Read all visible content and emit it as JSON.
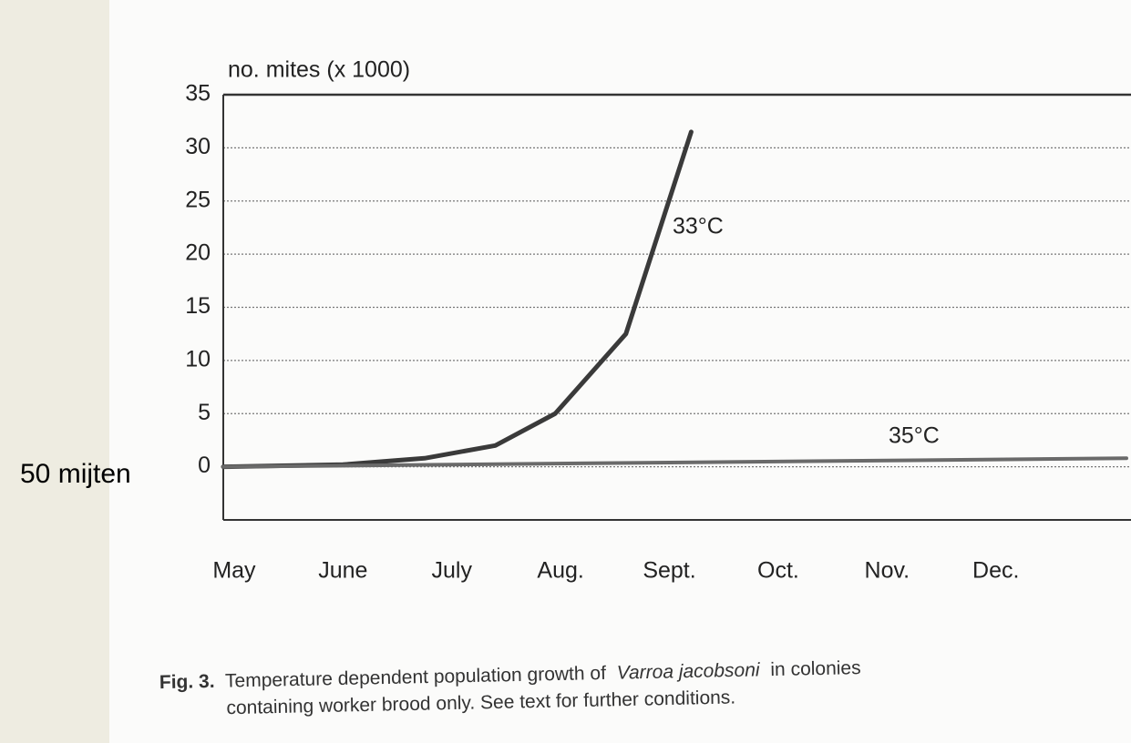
{
  "chart_data": {
    "type": "line",
    "y_label": "no. mites (x 1000)",
    "note": "50 mijten",
    "xlim": [
      -0.1,
      8.2
    ],
    "xticks": [
      {
        "value": 0,
        "label": "May"
      },
      {
        "value": 1,
        "label": "June"
      },
      {
        "value": 2,
        "label": "July"
      },
      {
        "value": 3,
        "label": "Aug."
      },
      {
        "value": 4,
        "label": "Sept."
      },
      {
        "value": 5,
        "label": "Oct."
      },
      {
        "value": 6,
        "label": "Nov."
      },
      {
        "value": 7,
        "label": "Dec."
      }
    ],
    "ylim": [
      -5,
      35
    ],
    "yticks": [
      0,
      5,
      10,
      15,
      20,
      25,
      30,
      35
    ],
    "grid": true,
    "series": [
      {
        "name": "33°C",
        "color": "#3a3a3a",
        "x": [
          -0.1,
          1,
          1.75,
          2.4,
          2.95,
          3.6,
          4.2
        ],
        "values": [
          0,
          0.2,
          0.8,
          2,
          5,
          12.5,
          31.5
        ]
      },
      {
        "name": "35°C",
        "color": "#6a6a6a",
        "x": [
          -0.1,
          4,
          8.2
        ],
        "values": [
          0,
          0.4,
          0.8
        ]
      }
    ],
    "caption": {
      "label": "Fig. 3.",
      "text_1": "Temperature dependent population growth of",
      "species": "Varroa jacobsoni",
      "text_2": "in colonies",
      "line_2": "containing worker brood only. See text for further conditions."
    }
  }
}
